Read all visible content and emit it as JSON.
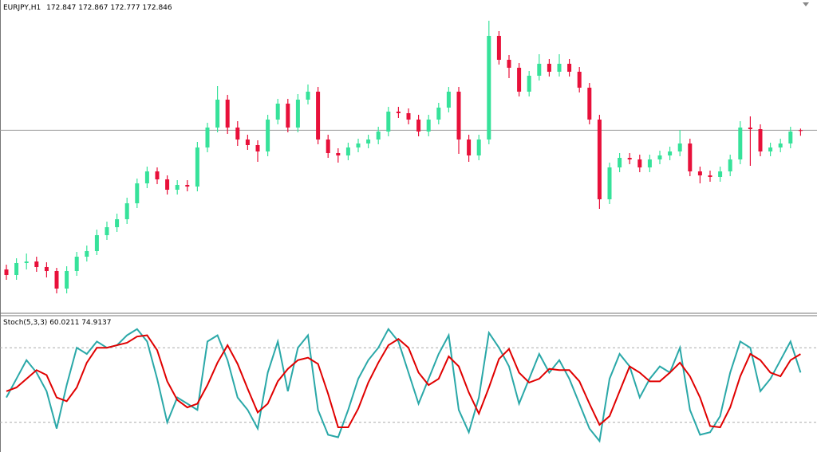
{
  "chart_data": [
    {
      "type": "candlestick",
      "title": "EURJPY,H1",
      "open": [
        171.1,
        171.03,
        171.18,
        171.2,
        171.13,
        171.08,
        170.86,
        171.08,
        171.26,
        171.33,
        171.53,
        171.63,
        171.73,
        171.93,
        172.18,
        172.33,
        172.23,
        172.1,
        172.16,
        172.14,
        172.63,
        172.88,
        173.23,
        172.88,
        172.73,
        172.66,
        172.58,
        172.98,
        173.18,
        172.88,
        173.23,
        173.33,
        172.73,
        172.56,
        172.53,
        172.63,
        172.68,
        172.73,
        172.83,
        173.08,
        173.06,
        172.98,
        172.83,
        172.98,
        173.13,
        173.33,
        172.73,
        172.53,
        172.73,
        174.03,
        173.73,
        173.63,
        173.33,
        173.53,
        173.68,
        173.58,
        173.68,
        173.58,
        173.38,
        172.98,
        171.98,
        172.38,
        172.5,
        172.48,
        172.38,
        172.48,
        172.53,
        172.58,
        172.68,
        172.33,
        172.28,
        172.26,
        172.33,
        172.48,
        172.88,
        172.86,
        172.58,
        172.63,
        172.68,
        172.847
      ],
      "high": [
        171.16,
        171.24,
        171.3,
        171.26,
        171.19,
        171.12,
        171.14,
        171.32,
        171.4,
        171.6,
        171.7,
        171.8,
        172.0,
        172.24,
        172.39,
        172.38,
        172.28,
        172.22,
        172.22,
        172.7,
        172.94,
        173.4,
        173.29,
        172.96,
        172.79,
        172.72,
        173.04,
        173.24,
        173.24,
        173.3,
        173.42,
        173.39,
        172.79,
        172.62,
        172.69,
        172.74,
        172.79,
        172.89,
        173.14,
        173.14,
        173.12,
        173.04,
        173.04,
        173.19,
        173.39,
        173.39,
        172.79,
        172.79,
        174.22,
        174.09,
        173.79,
        173.69,
        173.59,
        173.8,
        173.74,
        173.8,
        173.74,
        173.64,
        173.44,
        173.04,
        172.44,
        172.56,
        172.56,
        172.54,
        172.54,
        172.59,
        172.64,
        172.85,
        172.74,
        172.39,
        172.34,
        172.39,
        172.54,
        172.96,
        173.02,
        172.92,
        172.69,
        172.74,
        172.89,
        172.867
      ],
      "low": [
        170.97,
        170.97,
        171.1,
        171.07,
        171.0,
        170.8,
        170.8,
        171.02,
        171.2,
        171.28,
        171.47,
        171.57,
        171.67,
        171.87,
        172.12,
        172.17,
        172.04,
        172.04,
        172.08,
        172.08,
        172.57,
        172.82,
        172.8,
        172.65,
        172.6,
        172.45,
        172.52,
        172.92,
        172.82,
        172.82,
        173.17,
        172.67,
        172.5,
        172.44,
        172.47,
        172.57,
        172.62,
        172.67,
        172.77,
        173.0,
        172.92,
        172.77,
        172.77,
        172.92,
        173.07,
        172.55,
        172.45,
        172.47,
        172.67,
        173.67,
        173.5,
        173.27,
        173.27,
        173.47,
        173.52,
        173.52,
        173.52,
        173.32,
        172.92,
        171.86,
        171.92,
        172.32,
        172.42,
        172.32,
        172.32,
        172.42,
        172.47,
        172.52,
        172.27,
        172.18,
        172.2,
        172.2,
        172.27,
        172.42,
        172.4,
        172.52,
        172.52,
        172.57,
        172.62,
        172.777
      ],
      "close": [
        171.03,
        171.18,
        171.2,
        171.13,
        171.08,
        170.86,
        171.08,
        171.26,
        171.33,
        171.53,
        171.63,
        171.73,
        171.93,
        172.18,
        172.33,
        172.23,
        172.1,
        172.16,
        172.14,
        172.63,
        172.88,
        173.23,
        172.88,
        172.73,
        172.66,
        172.58,
        172.98,
        173.18,
        172.88,
        173.23,
        173.33,
        172.73,
        172.56,
        172.53,
        172.63,
        172.68,
        172.73,
        172.83,
        173.08,
        173.06,
        172.98,
        172.83,
        172.98,
        173.13,
        173.33,
        172.73,
        172.53,
        172.73,
        174.03,
        173.73,
        173.63,
        173.33,
        173.53,
        173.68,
        173.58,
        173.68,
        173.58,
        173.38,
        172.98,
        171.98,
        172.38,
        172.5,
        172.48,
        172.38,
        172.48,
        172.53,
        172.58,
        172.68,
        172.33,
        172.28,
        172.26,
        172.33,
        172.48,
        172.88,
        172.86,
        172.58,
        172.63,
        172.68,
        172.83,
        172.846
      ],
      "up_color": "#36e29a",
      "down_color": "#e8103a",
      "ylim": [
        170.56,
        174.48
      ]
    },
    {
      "type": "line",
      "title": "Stoch(5,3,3)",
      "series": [
        {
          "color": "#2aa8a8",
          "values": [
            40,
            55,
            70,
            60,
            45,
            15,
            50,
            80,
            75,
            85,
            80,
            82,
            90,
            95,
            85,
            55,
            20,
            40,
            35,
            30,
            85,
            90,
            70,
            40,
            30,
            15,
            60,
            85,
            45,
            80,
            90,
            30,
            10,
            8,
            30,
            55,
            70,
            80,
            95,
            85,
            60,
            35,
            55,
            75,
            90,
            30,
            12,
            40,
            92,
            80,
            65,
            35,
            55,
            75,
            60,
            70,
            55,
            35,
            15,
            5,
            55,
            75,
            65,
            40,
            55,
            65,
            60,
            80,
            30,
            10,
            12,
            25,
            60,
            85,
            80,
            45,
            55,
            70,
            85,
            60.0211
          ]
        },
        {
          "color": "#e00000",
          "values": [
            45,
            48,
            55,
            62,
            58,
            40,
            37,
            48,
            68,
            80,
            80,
            82,
            84,
            89,
            90,
            78,
            53,
            38,
            32,
            35,
            50,
            68,
            82,
            67,
            47,
            28,
            35,
            53,
            63,
            70,
            72,
            67,
            43,
            16,
            16,
            31,
            52,
            68,
            82,
            87,
            80,
            60,
            50,
            55,
            73,
            65,
            44,
            27,
            48,
            71,
            79,
            60,
            52,
            55,
            63,
            62,
            62,
            53,
            35,
            18,
            25,
            45,
            65,
            60,
            53,
            53,
            60,
            68,
            57,
            40,
            17,
            16,
            32,
            57,
            75,
            70,
            60,
            57,
            70,
            74.9137
          ]
        }
      ],
      "ylim": [
        0,
        100
      ],
      "levels": [
        20,
        80
      ]
    }
  ]
}
